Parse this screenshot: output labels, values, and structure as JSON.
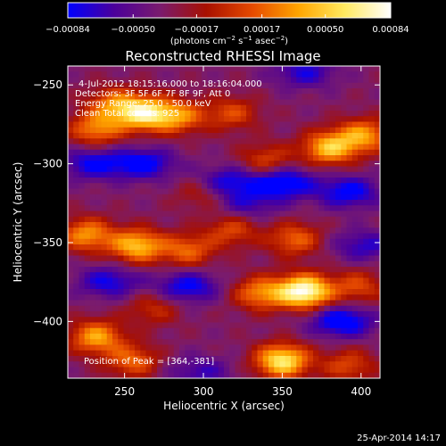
{
  "chart_data": {
    "type": "heatmap",
    "title": "Reconstructed RHESSI Image",
    "xlabel": "Heliocentric X (arcsec)",
    "ylabel": "Heliocentric Y (arcsec)",
    "xlim": [
      214,
      412
    ],
    "ylim": [
      -436,
      -238
    ],
    "x_ticks": [
      {
        "value": 250,
        "label": "250"
      },
      {
        "value": 300,
        "label": "300"
      },
      {
        "value": 350,
        "label": "350"
      },
      {
        "value": 400,
        "label": "400"
      }
    ],
    "y_ticks": [
      {
        "value": -250,
        "label": "−250"
      },
      {
        "value": -300,
        "label": "−300"
      },
      {
        "value": -350,
        "label": "−350"
      },
      {
        "value": -400,
        "label": "−400"
      }
    ],
    "colorbar": {
      "range": [
        -0.00084,
        0.00084
      ],
      "ticks": [
        {
          "value": -0.00084,
          "label": "−0.00084"
        },
        {
          "value": -0.0005,
          "label": "−0.00050"
        },
        {
          "value": -0.00017,
          "label": "−0.00017"
        },
        {
          "value": 0.00017,
          "label": "0.00017"
        },
        {
          "value": 0.0005,
          "label": "0.00050"
        },
        {
          "value": 0.00084,
          "label": "0.00084"
        }
      ],
      "units": {
        "prefix": "(photons cm",
        "exp1": "−2",
        "mid": " s",
        "exp2": "−1",
        "mid2": " asec",
        "exp3": "−2",
        "suffix": ")"
      },
      "colormap": [
        "#0000ff",
        "#4b009b",
        "#7a1b6e",
        "#a81000",
        "#e64a00",
        "#ffa500",
        "#ffea60",
        "#ffffff"
      ]
    },
    "annotations": [
      "4-Jul-2012 18:15:16.000 to 18:16:04.000",
      "Detectors: 3F 5F 6F 7F 8F 9F, Att 0",
      "Energy Range: 25.0 - 50.0 keV",
      "Clean    Total counts: 925"
    ],
    "peak_label": "Position of Peak = [364,-381]",
    "peak": {
      "x": 364,
      "y": -381
    },
    "sources": [
      {
        "x": 262,
        "y": -268,
        "amp": 1.0
      },
      {
        "x": 284,
        "y": -270,
        "amp": 0.65
      },
      {
        "x": 232,
        "y": -278,
        "amp": 0.65
      },
      {
        "x": 243,
        "y": -262,
        "amp": 0.55
      },
      {
        "x": 318,
        "y": -268,
        "amp": 0.45
      },
      {
        "x": 380,
        "y": -290,
        "amp": 0.85
      },
      {
        "x": 402,
        "y": -282,
        "amp": 0.7
      },
      {
        "x": 340,
        "y": -298,
        "amp": 0.45
      },
      {
        "x": 226,
        "y": -345,
        "amp": 0.7
      },
      {
        "x": 258,
        "y": -352,
        "amp": 0.85
      },
      {
        "x": 290,
        "y": -355,
        "amp": 0.55
      },
      {
        "x": 318,
        "y": -342,
        "amp": 0.45
      },
      {
        "x": 358,
        "y": -348,
        "amp": 0.55
      },
      {
        "x": 364,
        "y": -381,
        "amp": 1.25
      },
      {
        "x": 336,
        "y": -382,
        "amp": 0.65
      },
      {
        "x": 398,
        "y": -378,
        "amp": 0.45
      },
      {
        "x": 232,
        "y": -410,
        "amp": 0.75
      },
      {
        "x": 255,
        "y": -425,
        "amp": 0.55
      },
      {
        "x": 350,
        "y": -425,
        "amp": 1.05
      },
      {
        "x": 392,
        "y": -428,
        "amp": 0.45
      },
      {
        "x": 300,
        "y": -318,
        "amp": 0.35
      },
      {
        "x": 268,
        "y": -392,
        "amp": 0.35
      }
    ],
    "holes": [
      {
        "x": 230,
        "y": -300,
        "amp": 0.9
      },
      {
        "x": 262,
        "y": -300,
        "amp": 1.0
      },
      {
        "x": 314,
        "y": -312,
        "amp": 0.95
      },
      {
        "x": 350,
        "y": -312,
        "amp": 1.2
      },
      {
        "x": 392,
        "y": -318,
        "amp": 1.0
      },
      {
        "x": 364,
        "y": -242,
        "amp": 0.75
      },
      {
        "x": 240,
        "y": -375,
        "amp": 0.85
      },
      {
        "x": 290,
        "y": -378,
        "amp": 0.95
      },
      {
        "x": 388,
        "y": -400,
        "amp": 1.15
      },
      {
        "x": 298,
        "y": -432,
        "amp": 0.6
      },
      {
        "x": 402,
        "y": -352,
        "amp": 0.7
      },
      {
        "x": 328,
        "y": -326,
        "amp": 0.6
      }
    ]
  },
  "footer_timestamp": "25-Apr-2014 14:17"
}
